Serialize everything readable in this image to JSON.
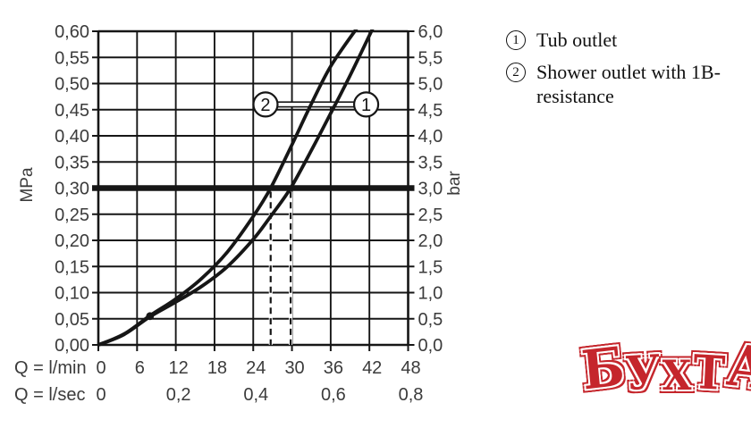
{
  "chart_data": {
    "type": "line",
    "title": "",
    "x_axis": {
      "row1_label": "Q = l/min",
      "row2_label": "Q = l/sec",
      "range_lmin": [
        0,
        48
      ],
      "lmin_ticks": [
        0,
        6,
        12,
        18,
        24,
        30,
        36,
        42,
        48
      ],
      "lmin_tick_labels": [
        "0",
        "6",
        "12",
        "18",
        "24",
        "30",
        "36",
        "42",
        "48"
      ],
      "lsec_tick_labels": [
        {
          "x": 0,
          "label": "0"
        },
        {
          "x": 12,
          "label": "0,2"
        },
        {
          "x": 24,
          "label": "0,4"
        },
        {
          "x": 36,
          "label": "0,6"
        },
        {
          "x": 48,
          "label": "0,8"
        }
      ],
      "grid": true
    },
    "y_axis_left": {
      "title": "MPa",
      "range": [
        0,
        0.6
      ],
      "step": 0.05,
      "tick_labels": [
        "0,00",
        "0,05",
        "0,10",
        "0,15",
        "0,20",
        "0,25",
        "0,30",
        "0,35",
        "0,40",
        "0,45",
        "0,50",
        "0,55",
        "0,60"
      ]
    },
    "y_axis_right": {
      "title": "bar",
      "range": [
        0,
        6
      ],
      "step": 0.5,
      "tick_labels": [
        "0,0",
        "0,5",
        "1,0",
        "1,5",
        "2,0",
        "2,5",
        "3,0",
        "3,5",
        "4,0",
        "4,5",
        "5,0",
        "5,5",
        "6,0"
      ]
    },
    "reference_line": {
      "mpa": 0.3,
      "bar": 3.0
    },
    "dashed_guides_x_lmin": [
      26.7,
      29.8
    ],
    "point_marker": {
      "x_lmin": 8,
      "y_mpa": 0.055
    },
    "series": [
      {
        "id": "1",
        "name": "Tub outlet",
        "callout": {
          "symbol": "1",
          "x_lmin": 41.5,
          "y_mpa": 0.46
        },
        "points": [
          [
            0,
            0
          ],
          [
            4,
            0.02
          ],
          [
            8,
            0.054
          ],
          [
            12,
            0.082
          ],
          [
            16,
            0.112
          ],
          [
            20,
            0.15
          ],
          [
            24,
            0.202
          ],
          [
            27,
            0.251
          ],
          [
            29.8,
            0.3
          ],
          [
            33,
            0.372
          ],
          [
            36,
            0.443
          ],
          [
            39,
            0.515
          ],
          [
            42.5,
            0.605
          ]
        ]
      },
      {
        "id": "2",
        "name": "Shower outlet with 1B-resistance",
        "callout": {
          "symbol": "2",
          "x_lmin": 25.9,
          "y_mpa": 0.46
        },
        "points": [
          [
            0,
            0
          ],
          [
            4,
            0.021
          ],
          [
            8,
            0.056
          ],
          [
            12,
            0.088
          ],
          [
            16,
            0.127
          ],
          [
            20,
            0.178
          ],
          [
            24,
            0.246
          ],
          [
            26.7,
            0.3
          ],
          [
            30,
            0.383
          ],
          [
            33,
            0.461
          ],
          [
            36,
            0.533
          ],
          [
            40,
            0.605
          ]
        ]
      }
    ],
    "legend_position": "right"
  },
  "legend": {
    "items": [
      {
        "symbol": "1",
        "label": "Tub outlet"
      },
      {
        "symbol": "2",
        "label": "Shower outlet with 1B-resistance"
      }
    ]
  },
  "logo": {
    "text": "БУХТА",
    "letters": [
      "Б",
      "У",
      "Х",
      "Т",
      "А"
    ],
    "color": "#c5262c"
  },
  "colors": {
    "chart_line": "#161616",
    "label_text": "#3b3b3b",
    "legend_text": "#111111",
    "logo_red": "#c5262c",
    "background": "#ffffff"
  }
}
